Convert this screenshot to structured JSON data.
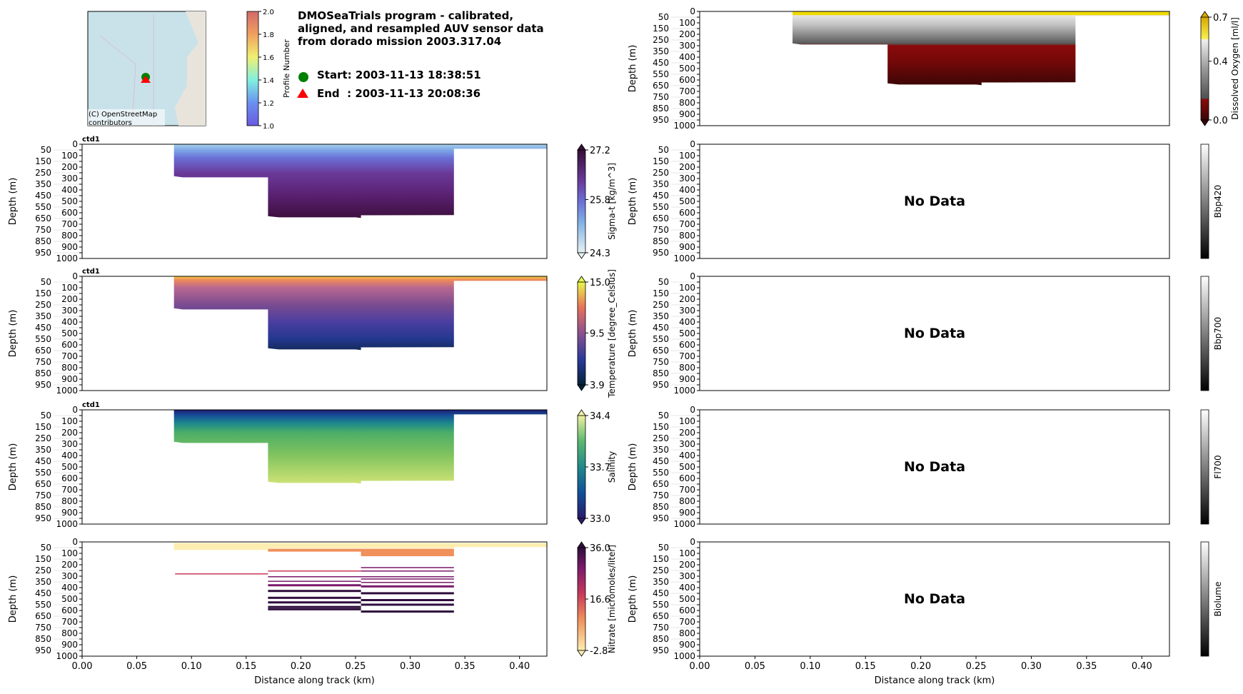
{
  "header": {
    "title_lines": [
      "DMOSeaTrials program - calibrated,",
      "aligned, and resampled AUV sensor data",
      "from dorado mission 2003.317.04"
    ],
    "start_label": "Start: 2003-11-13 18:38:51",
    "end_label": "End  : 2003-11-13 20:08:36",
    "map_attribution_lines": [
      "(C) OpenStreetMap",
      "contributors"
    ],
    "profile_colorbar": {
      "label": "Profile Number",
      "ticks": [
        "1.0",
        "1.2",
        "1.4",
        "1.6",
        "1.8",
        "2.0"
      ]
    }
  },
  "axes_common": {
    "ylabel": "Depth (m)",
    "xlabel": "Distance along track (km)",
    "no_data": "No Data",
    "panel_title": "ctd1"
  },
  "chart_data": {
    "type": "heatmap",
    "xlim": [
      0,
      0.425
    ],
    "ylim": [
      1000,
      0
    ],
    "x_ticks": [
      "0.00",
      "0.05",
      "0.10",
      "0.15",
      "0.20",
      "0.25",
      "0.30",
      "0.35",
      "0.40"
    ],
    "y_ticks": [
      "0",
      "50",
      "100",
      "150",
      "200",
      "250",
      "300",
      "350",
      "400",
      "450",
      "500",
      "550",
      "600",
      "650",
      "700",
      "750",
      "800",
      "850",
      "900",
      "950",
      "1000"
    ],
    "section_outline_km_m": [
      [
        0.084,
        0
      ],
      [
        0.425,
        0
      ],
      [
        0.425,
        40
      ],
      [
        0.34,
        40
      ],
      [
        0.34,
        620
      ],
      [
        0.255,
        622
      ],
      [
        0.255,
        645
      ],
      [
        0.25,
        640
      ],
      [
        0.18,
        640
      ],
      [
        0.17,
        630
      ],
      [
        0.17,
        290
      ],
      [
        0.092,
        290
      ],
      [
        0.084,
        280
      ]
    ],
    "panels": [
      {
        "id": "oxygen",
        "side": "right",
        "row": 0,
        "has_data": true,
        "title": "",
        "cbar_label": "Dissolved Oxygen [ml/l]",
        "cbar_ticks": [
          "0.0",
          "0.4",
          "0.7"
        ],
        "vmin": 0.0,
        "vmax": 0.7,
        "cmap": "oxy"
      },
      {
        "id": "sigmat",
        "side": "left",
        "row": 1,
        "has_data": true,
        "title": "ctd1",
        "cbar_label": "Sigma-t [kg/m^3]",
        "cbar_ticks": [
          "24.3",
          "25.8",
          "27.2"
        ],
        "vmin": 24.3,
        "vmax": 27.2,
        "cmap": "dense"
      },
      {
        "id": "temperature",
        "side": "left",
        "row": 2,
        "has_data": true,
        "title": "ctd1",
        "cbar_label": "Temperature [degree_Celsius]",
        "cbar_ticks": [
          "3.9",
          "9.5",
          "15.0"
        ],
        "vmin": 3.9,
        "vmax": 15.0,
        "cmap": "thermal"
      },
      {
        "id": "salinity",
        "side": "left",
        "row": 3,
        "has_data": true,
        "title": "ctd1",
        "cbar_label": "Salinity",
        "cbar_ticks": [
          "33.0",
          "33.7",
          "34.4"
        ],
        "vmin": 33.0,
        "vmax": 34.4,
        "cmap": "haline"
      },
      {
        "id": "nitrate",
        "side": "left",
        "row": 4,
        "has_data": true,
        "title": "",
        "cbar_label": "Nitrate [micromoles/liter]",
        "cbar_ticks": [
          "-2.8",
          "16.6",
          "36.0"
        ],
        "vmin": -2.8,
        "vmax": 36.0,
        "cmap": "matter"
      },
      {
        "id": "bbp420",
        "side": "right",
        "row": 1,
        "has_data": false,
        "title": "",
        "cbar_label": "Bbp420",
        "cbar_ticks": [],
        "cmap": "gray"
      },
      {
        "id": "bbp700",
        "side": "right",
        "row": 2,
        "has_data": false,
        "title": "",
        "cbar_label": "Bbp700",
        "cbar_ticks": [],
        "cmap": "gray"
      },
      {
        "id": "fl700",
        "side": "right",
        "row": 3,
        "has_data": false,
        "title": "",
        "cbar_label": "Fl700",
        "cbar_ticks": [],
        "cmap": "gray"
      },
      {
        "id": "biolume",
        "side": "right",
        "row": 4,
        "has_data": false,
        "title": "",
        "cbar_label": "Biolume",
        "cbar_ticks": [],
        "cmap": "gray"
      }
    ],
    "nitrate_stripes_km_m_value": [
      [
        0.084,
        0.425,
        10,
        2
      ],
      [
        0.084,
        0.425,
        20,
        4
      ],
      [
        0.084,
        0.34,
        30,
        6
      ],
      [
        0.084,
        0.17,
        45,
        8
      ],
      [
        0.17,
        0.34,
        60,
        10
      ],
      [
        0.255,
        0.34,
        80,
        12
      ],
      [
        0.255,
        0.34,
        100,
        14
      ],
      [
        0.085,
        0.17,
        275,
        24
      ],
      [
        0.17,
        0.255,
        250,
        28
      ],
      [
        0.255,
        0.34,
        220,
        30
      ],
      [
        0.255,
        0.34,
        250,
        30
      ],
      [
        0.17,
        0.34,
        300,
        32
      ],
      [
        0.255,
        0.34,
        320,
        33
      ],
      [
        0.17,
        0.255,
        340,
        34
      ],
      [
        0.255,
        0.34,
        350,
        34
      ],
      [
        0.17,
        0.255,
        370,
        35
      ],
      [
        0.255,
        0.34,
        380,
        35
      ],
      [
        0.17,
        0.255,
        420,
        36
      ],
      [
        0.255,
        0.34,
        440,
        36
      ],
      [
        0.17,
        0.255,
        480,
        36
      ],
      [
        0.255,
        0.34,
        500,
        36
      ],
      [
        0.17,
        0.255,
        520,
        36
      ],
      [
        0.255,
        0.34,
        540,
        36
      ],
      [
        0.17,
        0.255,
        560,
        36
      ],
      [
        0.17,
        0.255,
        580,
        36
      ],
      [
        0.255,
        0.34,
        600,
        36
      ]
    ]
  }
}
